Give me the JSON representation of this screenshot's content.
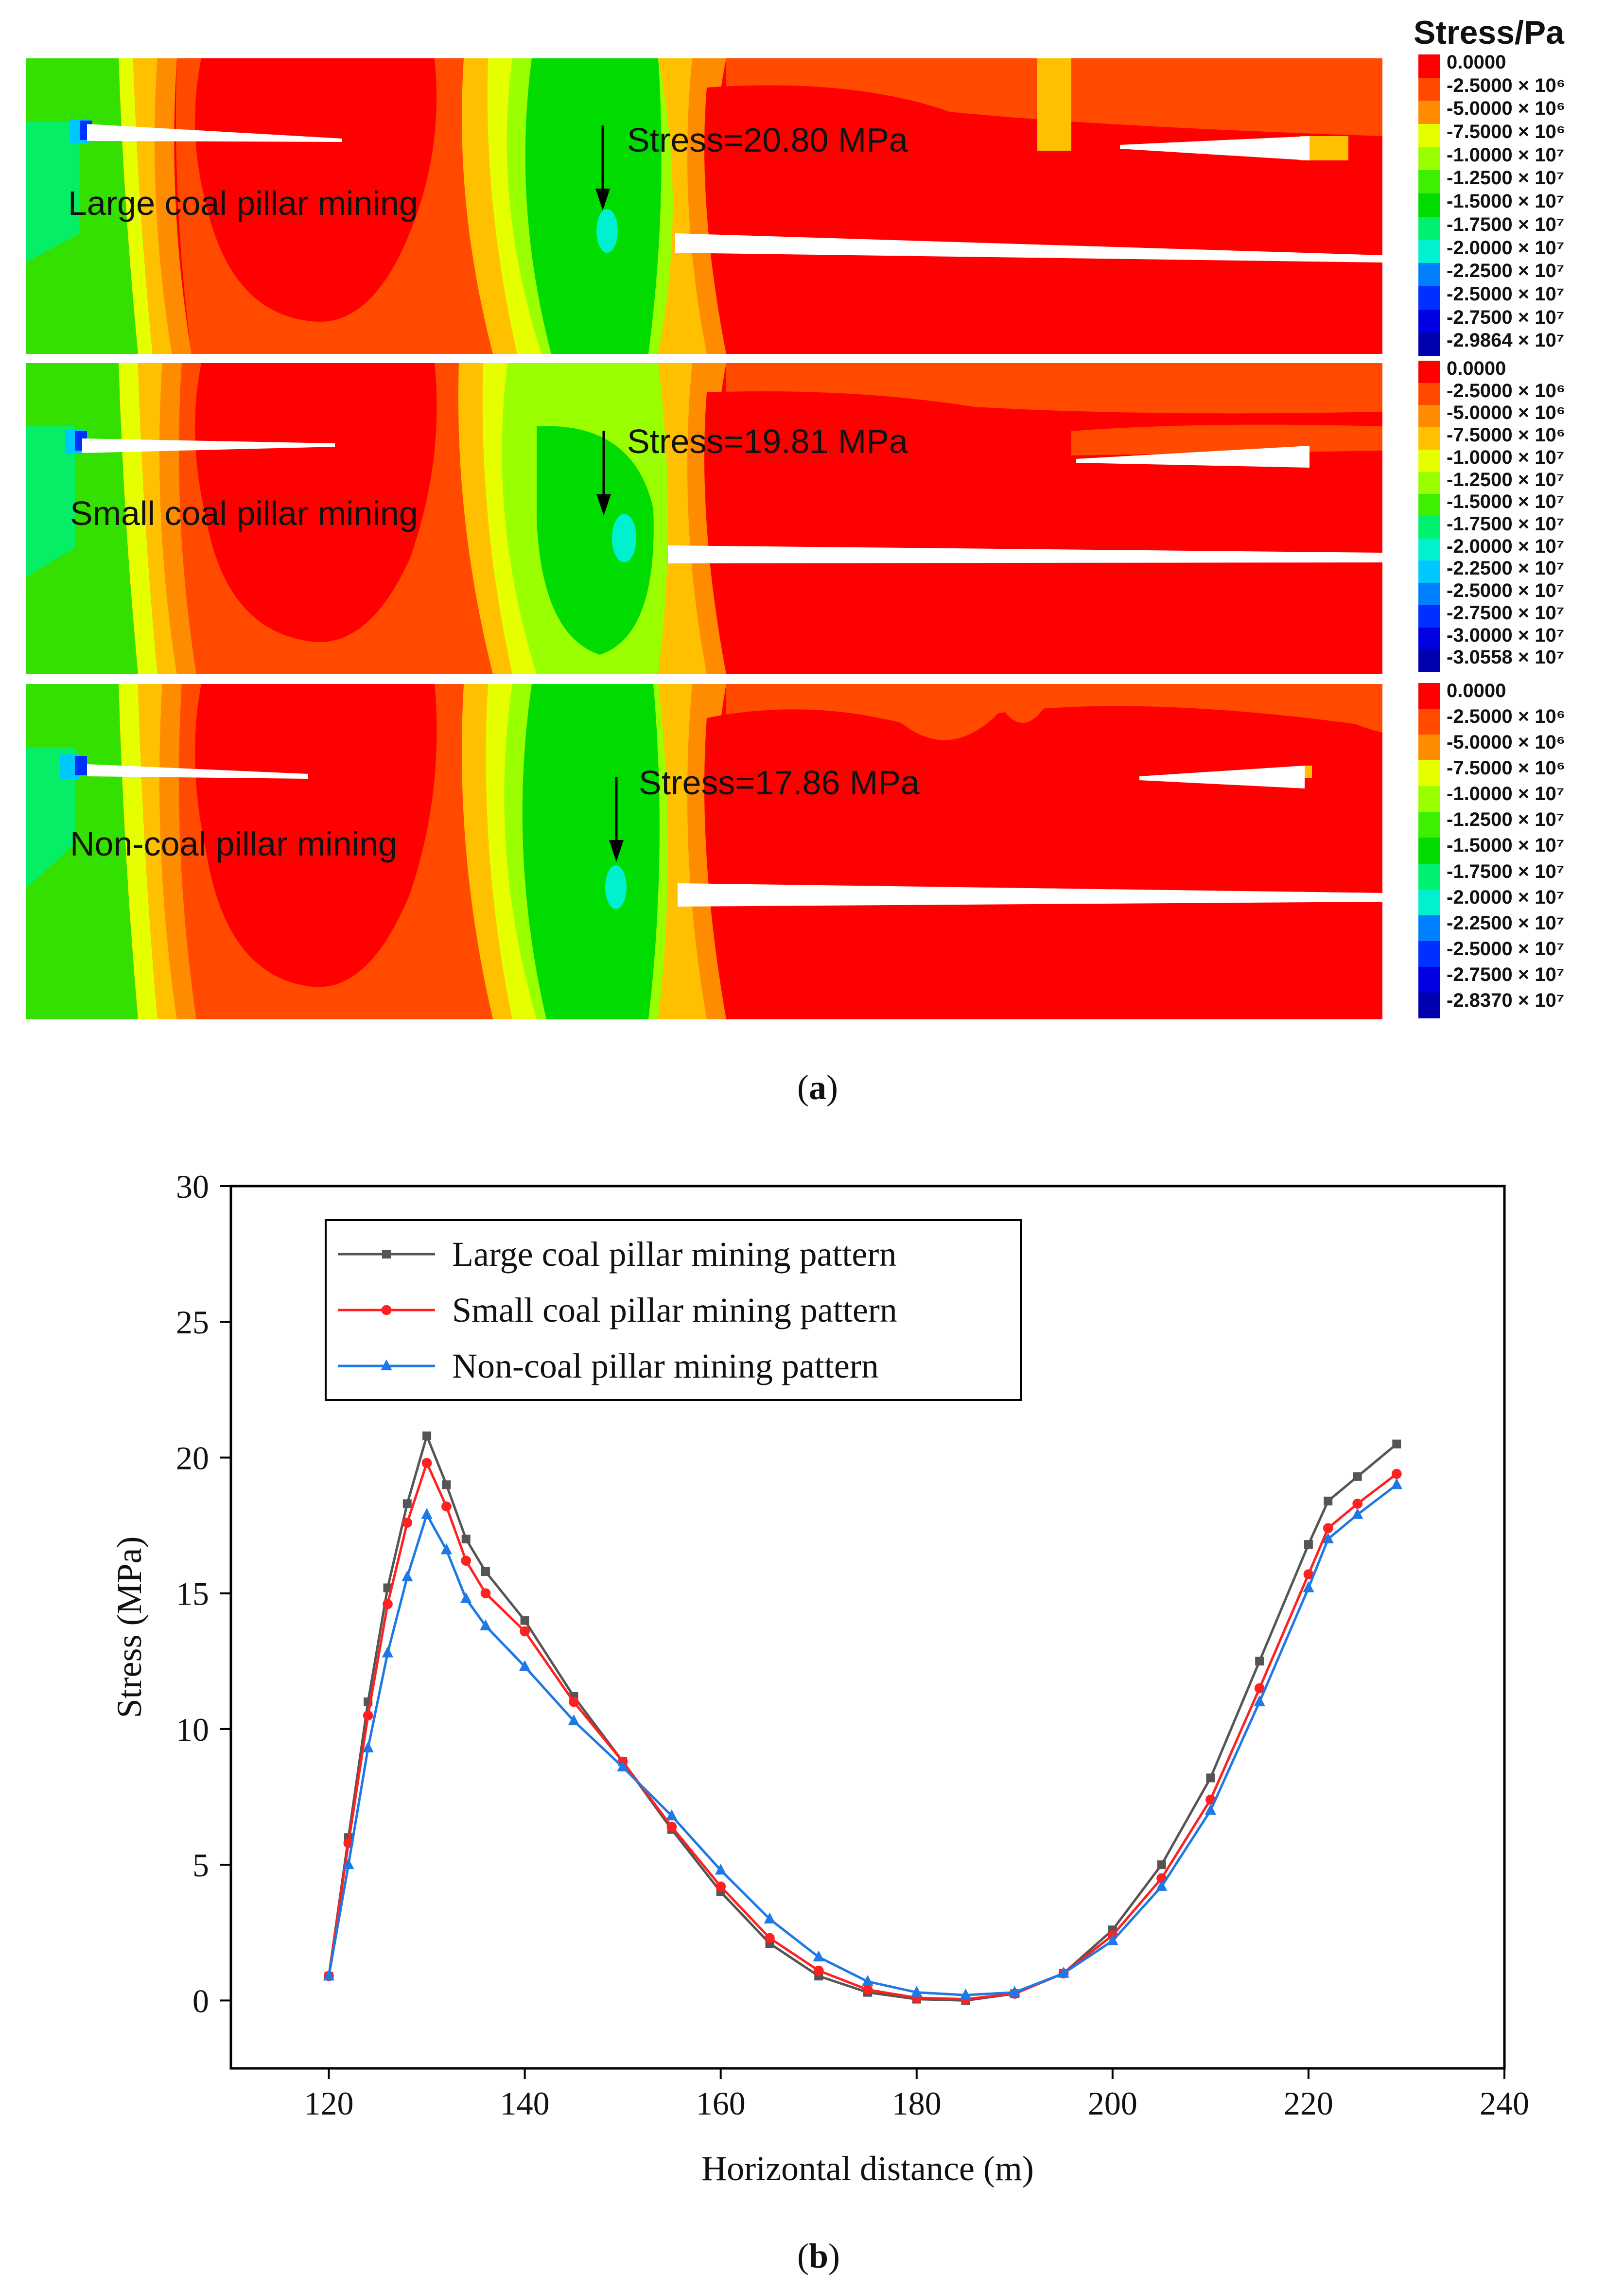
{
  "figure_a": {
    "legend_title": "Stress/Pa",
    "legend_colors": [
      "#ff0000",
      "#ff4a00",
      "#ff8c00",
      "#ffc000",
      "#e6ff00",
      "#9aff00",
      "#3cf000",
      "#00dc00",
      "#00f070",
      "#00f0d0",
      "#00c8ff",
      "#0080ff",
      "#0030ff",
      "#0000e0",
      "#0000b0"
    ],
    "panels": [
      {
        "label": "Large coal pillar mining",
        "stress_text": "Stress=20.80 MPa",
        "legend": [
          "0.0000",
          "-2.5000 × 10⁶",
          "-5.0000 × 10⁶",
          "-7.5000 × 10⁶",
          "-1.0000 × 10⁷",
          "-1.2500 × 10⁷",
          "-1.5000 × 10⁷",
          "-1.7500 × 10⁷",
          "-2.0000 × 10⁷",
          "-2.2500 × 10⁷",
          "-2.5000 × 10⁷",
          "-2.7500 × 10⁷",
          "-2.9864 × 10⁷"
        ]
      },
      {
        "label": "Small coal pillar mining",
        "stress_text": "Stress=19.81 MPa",
        "legend": [
          "0.0000",
          "-2.5000 × 10⁶",
          "-5.0000 × 10⁶",
          "-7.5000 × 10⁶",
          "-1.0000 × 10⁷",
          "-1.2500 × 10⁷",
          "-1.5000 × 10⁷",
          "-1.7500 × 10⁷",
          "-2.0000 × 10⁷",
          "-2.2500 × 10⁷",
          "-2.5000 × 10⁷",
          "-2.7500 × 10⁷",
          "-3.0000 × 10⁷",
          "-3.0558 × 10⁷"
        ]
      },
      {
        "label": "Non-coal pillar mining",
        "stress_text": "Stress=17.86 MPa",
        "legend": [
          "0.0000",
          "-2.5000 × 10⁶",
          "-5.0000 × 10⁶",
          "-7.5000 × 10⁶",
          "-1.0000 × 10⁷",
          "-1.2500 × 10⁷",
          "-1.5000 × 10⁷",
          "-1.7500 × 10⁷",
          "-2.0000 × 10⁷",
          "-2.2500 × 10⁷",
          "-2.5000 × 10⁷",
          "-2.7500 × 10⁷",
          "-2.8370 × 10⁷"
        ]
      }
    ],
    "caption_open": "(",
    "caption_letter": "a",
    "caption_close": ")"
  },
  "figure_b": {
    "caption_open": "(",
    "caption_letter": "b",
    "caption_close": ")"
  },
  "chart_data": {
    "type": "line",
    "title": "",
    "xlabel": "Horizontal distance (m)",
    "ylabel": "Stress (MPa)",
    "xlim": [
      110,
      240
    ],
    "ylim": [
      -2.5,
      30
    ],
    "xticks": [
      120,
      140,
      160,
      180,
      200,
      220,
      240
    ],
    "yticks": [
      0,
      5,
      10,
      15,
      20,
      25,
      30
    ],
    "legend_position": "top-left",
    "series": [
      {
        "name": "Large coal pillar mining pattern",
        "color": "#555555",
        "marker": "square",
        "x": [
          120,
          122,
          124,
          126,
          128,
          130,
          132,
          134,
          136,
          140,
          145,
          150,
          155,
          160,
          165,
          170,
          175,
          180,
          185,
          190,
          195,
          200,
          205,
          210,
          215,
          220,
          222,
          225,
          229
        ],
        "y": [
          0.9,
          6.0,
          11.0,
          15.2,
          18.3,
          20.8,
          19.0,
          17.0,
          15.8,
          14.0,
          11.2,
          8.8,
          6.3,
          4.0,
          2.1,
          0.9,
          0.3,
          0.05,
          0.0,
          0.25,
          1.0,
          2.6,
          5.0,
          8.2,
          12.5,
          16.8,
          18.4,
          19.3,
          20.5
        ]
      },
      {
        "name": "Small coal pillar mining pattern",
        "color": "#ff2020",
        "marker": "circle",
        "x": [
          120,
          122,
          124,
          126,
          128,
          130,
          132,
          134,
          136,
          140,
          145,
          150,
          155,
          160,
          165,
          170,
          175,
          180,
          185,
          190,
          195,
          200,
          205,
          210,
          215,
          220,
          222,
          225,
          229
        ],
        "y": [
          0.9,
          5.8,
          10.5,
          14.6,
          17.6,
          19.8,
          18.2,
          16.2,
          15.0,
          13.6,
          11.0,
          8.8,
          6.4,
          4.2,
          2.3,
          1.1,
          0.4,
          0.1,
          0.05,
          0.25,
          1.0,
          2.4,
          4.5,
          7.4,
          11.5,
          15.7,
          17.4,
          18.3,
          19.4
        ]
      },
      {
        "name": "Non-coal pillar mining pattern",
        "color": "#1e78e6",
        "marker": "triangle",
        "x": [
          120,
          122,
          124,
          126,
          128,
          130,
          132,
          134,
          136,
          140,
          145,
          150,
          155,
          160,
          165,
          170,
          175,
          180,
          185,
          190,
          195,
          200,
          205,
          210,
          215,
          220,
          222,
          225,
          229
        ],
        "y": [
          0.9,
          5.0,
          9.3,
          12.8,
          15.6,
          17.9,
          16.6,
          14.8,
          13.8,
          12.3,
          10.3,
          8.6,
          6.8,
          4.8,
          3.0,
          1.6,
          0.7,
          0.3,
          0.2,
          0.3,
          1.0,
          2.2,
          4.2,
          7.0,
          11.0,
          15.2,
          17.0,
          17.9,
          19.0
        ]
      }
    ]
  }
}
